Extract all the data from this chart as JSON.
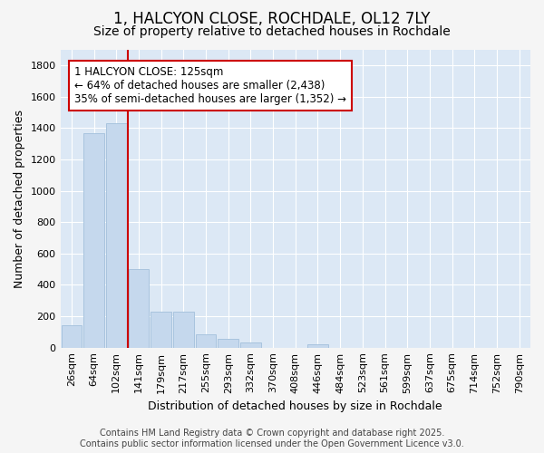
{
  "title": "1, HALCYON CLOSE, ROCHDALE, OL12 7LY",
  "subtitle": "Size of property relative to detached houses in Rochdale",
  "xlabel": "Distribution of detached houses by size in Rochdale",
  "ylabel": "Number of detached properties",
  "categories": [
    "26sqm",
    "64sqm",
    "102sqm",
    "141sqm",
    "179sqm",
    "217sqm",
    "255sqm",
    "293sqm",
    "332sqm",
    "370sqm",
    "408sqm",
    "446sqm",
    "484sqm",
    "523sqm",
    "561sqm",
    "599sqm",
    "637sqm",
    "675sqm",
    "714sqm",
    "752sqm",
    "790sqm"
  ],
  "values": [
    140,
    1370,
    1430,
    500,
    230,
    230,
    85,
    55,
    30,
    0,
    0,
    20,
    0,
    0,
    0,
    0,
    0,
    0,
    0,
    0,
    0
  ],
  "bar_color": "#c5d8ed",
  "bar_edge_color": "#a8c4de",
  "vline_x": 2.5,
  "vline_color": "#cc0000",
  "annotation_text": "1 HALCYON CLOSE: 125sqm\n← 64% of detached houses are smaller (2,438)\n35% of semi-detached houses are larger (1,352) →",
  "annotation_box_facecolor": "#ffffff",
  "annotation_box_edgecolor": "#cc0000",
  "ylim": [
    0,
    1900
  ],
  "yticks": [
    0,
    200,
    400,
    600,
    800,
    1000,
    1200,
    1400,
    1600,
    1800
  ],
  "fig_bg_color": "#f5f5f5",
  "plot_bg_color": "#dce8f5",
  "grid_color": "#ffffff",
  "footer_line1": "Contains HM Land Registry data © Crown copyright and database right 2025.",
  "footer_line2": "Contains public sector information licensed under the Open Government Licence v3.0.",
  "title_fontsize": 12,
  "subtitle_fontsize": 10,
  "axis_label_fontsize": 9,
  "tick_fontsize": 8,
  "annotation_fontsize": 8.5,
  "footer_fontsize": 7
}
